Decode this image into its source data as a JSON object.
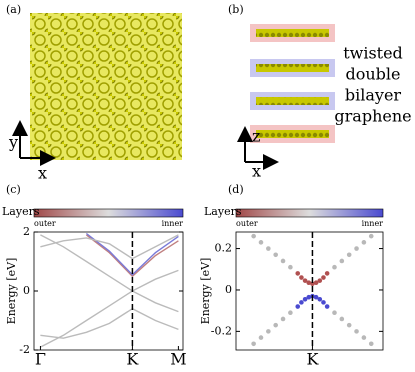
{
  "panels": {
    "a": {
      "label": "(a)",
      "axes": [
        "y",
        "x"
      ]
    },
    "b": {
      "label": "(b)",
      "axes": [
        "z",
        "x"
      ],
      "caption": [
        "twisted",
        "double",
        "bilayer",
        "graphene"
      ]
    },
    "c": {
      "label": "(c)"
    },
    "d": {
      "label": "(d)"
    }
  },
  "chart_data": [
    {
      "type": "line",
      "ylabel": "Energy [eV]",
      "colorbar": {
        "label": "Layers",
        "low": "outer",
        "high": "inner",
        "colors": [
          "#a04848",
          "#dddddd",
          "#4a4ad0"
        ]
      },
      "xlim": [
        -0.07,
        1.55
      ],
      "xticks": [
        {
          "value": 0,
          "label": "Γ"
        },
        {
          "value": 1,
          "label": "K"
        },
        {
          "value": 1.5,
          "label": "M"
        }
      ],
      "dashed_line_x": 1,
      "ylim": [
        -2,
        2
      ],
      "yticks": [
        -2,
        0,
        2
      ],
      "x": [
        0,
        0.25,
        0.5,
        0.75,
        1,
        1.25,
        1.5
      ],
      "series": [
        {
          "color": "#bbbbbb",
          "values": [
            1.9,
            1.5,
            1.0,
            0.5,
            0,
            0.4,
            0.7
          ]
        },
        {
          "color": "#bbbbbb",
          "values": [
            -1.9,
            -1.5,
            -1.0,
            -0.5,
            0,
            -0.4,
            -0.7
          ]
        },
        {
          "color": "#c08080",
          "values": [
            null,
            null,
            1.9,
            1.3,
            0.5,
            1.2,
            1.7
          ]
        },
        {
          "color": "#7a7ad8",
          "values": [
            null,
            null,
            1.95,
            1.35,
            0.55,
            1.3,
            1.85
          ]
        },
        {
          "color": "#bbbbbb",
          "values": [
            -1.5,
            -1.6,
            -1.4,
            -1.1,
            -0.6,
            -1.0,
            -1.3
          ]
        },
        {
          "color": "#bbbbbb",
          "values": [
            1.5,
            1.7,
            1.8,
            1.6,
            1.1,
            1.5,
            1.9
          ]
        }
      ]
    },
    {
      "type": "scatter",
      "ylabel": "Energy [eV]",
      "colorbar": {
        "label": "Layers",
        "low": "outer",
        "high": "inner",
        "colors": [
          "#a04848",
          "#dddddd",
          "#4a4ad0"
        ]
      },
      "xlim": [
        -1.04,
        0.96
      ],
      "xticks": [
        {
          "value": 0,
          "label": "K"
        }
      ],
      "dashed_line_x": 0,
      "ylim": [
        -0.29,
        0.28
      ],
      "yticks": [
        0.2,
        0,
        -0.2
      ],
      "series": [
        {
          "color": "#b8b8b8",
          "x": [
            -0.8,
            -0.7,
            -0.6,
            -0.5,
            -0.4,
            -0.3,
            0.3,
            0.4,
            0.5,
            0.6,
            0.7,
            0.8
          ],
          "values": [
            0.26,
            0.23,
            0.2,
            0.17,
            0.14,
            0.11,
            0.11,
            0.14,
            0.17,
            0.2,
            0.23,
            0.26
          ]
        },
        {
          "color": "#b8b8b8",
          "x": [
            -0.8,
            -0.7,
            -0.6,
            -0.5,
            -0.4,
            -0.3,
            0.3,
            0.4,
            0.5,
            0.6,
            0.7,
            0.8
          ],
          "values": [
            -0.26,
            -0.23,
            -0.2,
            -0.17,
            -0.14,
            -0.11,
            -0.11,
            -0.14,
            -0.17,
            -0.2,
            -0.23,
            -0.26
          ]
        },
        {
          "color": "#b05050",
          "x": [
            -0.2,
            -0.15,
            -0.1,
            -0.05,
            0,
            0.05,
            0.1,
            0.15,
            0.2
          ],
          "values": [
            0.08,
            0.06,
            0.045,
            0.035,
            0.03,
            0.035,
            0.045,
            0.06,
            0.08
          ]
        },
        {
          "color": "#4a4ad0",
          "x": [
            -0.2,
            -0.15,
            -0.1,
            -0.05,
            0,
            0.05,
            0.1,
            0.15,
            0.2
          ],
          "values": [
            -0.08,
            -0.06,
            -0.045,
            -0.035,
            -0.03,
            -0.035,
            -0.045,
            -0.06,
            -0.08
          ]
        }
      ]
    }
  ]
}
